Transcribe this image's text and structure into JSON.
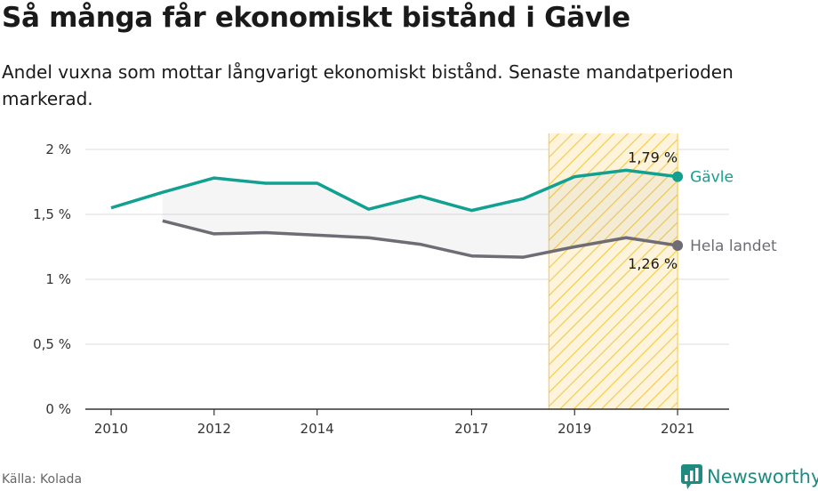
{
  "title": "Så många får ekonomiskt bistånd i Gävle",
  "subtitle": "Andel vuxna som mottar långvarigt ekonomiskt bistånd. Senaste mandatperioden markerad.",
  "source": "Källa: Kolada",
  "brand": "Newsworthy",
  "colors": {
    "accent": "#12a090",
    "gray": "#6e6c74",
    "highlight": "#f5c842",
    "brand": "#1f8a7f"
  },
  "chart_data": {
    "type": "line",
    "ylim": [
      0,
      2.1
    ],
    "xlim": [
      2009.5,
      2022.0
    ],
    "y_ticks": [
      {
        "value": 0,
        "label": "0 %"
      },
      {
        "value": 0.5,
        "label": "0,5 %"
      },
      {
        "value": 1,
        "label": "1 %"
      },
      {
        "value": 1.5,
        "label": "1,5 %"
      },
      {
        "value": 2,
        "label": "2 %"
      }
    ],
    "x_ticks": [
      {
        "value": 2010,
        "label": "2010"
      },
      {
        "value": 2012,
        "label": "2012"
      },
      {
        "value": 2014,
        "label": "2014"
      },
      {
        "value": 2017,
        "label": "2017"
      },
      {
        "value": 2019,
        "label": "2019"
      },
      {
        "value": 2021,
        "label": "2021"
      }
    ],
    "highlight_period": [
      2018.5,
      2021
    ],
    "series": [
      {
        "name": "Gävle",
        "color": "#12a090",
        "x": [
          2010,
          2011,
          2012,
          2013,
          2014,
          2015,
          2016,
          2017,
          2018,
          2019,
          2020,
          2021
        ],
        "values": [
          1.55,
          1.67,
          1.78,
          1.74,
          1.74,
          1.54,
          1.64,
          1.53,
          1.62,
          1.79,
          1.84,
          1.79
        ],
        "end_label": "1,79 %"
      },
      {
        "name": "Hela landet",
        "color": "#6e6c74",
        "x": [
          2011,
          2012,
          2013,
          2014,
          2015,
          2016,
          2017,
          2018,
          2019,
          2020,
          2021
        ],
        "values": [
          1.45,
          1.35,
          1.36,
          1.34,
          1.32,
          1.27,
          1.18,
          1.17,
          1.25,
          1.32,
          1.26
        ],
        "end_label": "1,26 %"
      }
    ]
  }
}
